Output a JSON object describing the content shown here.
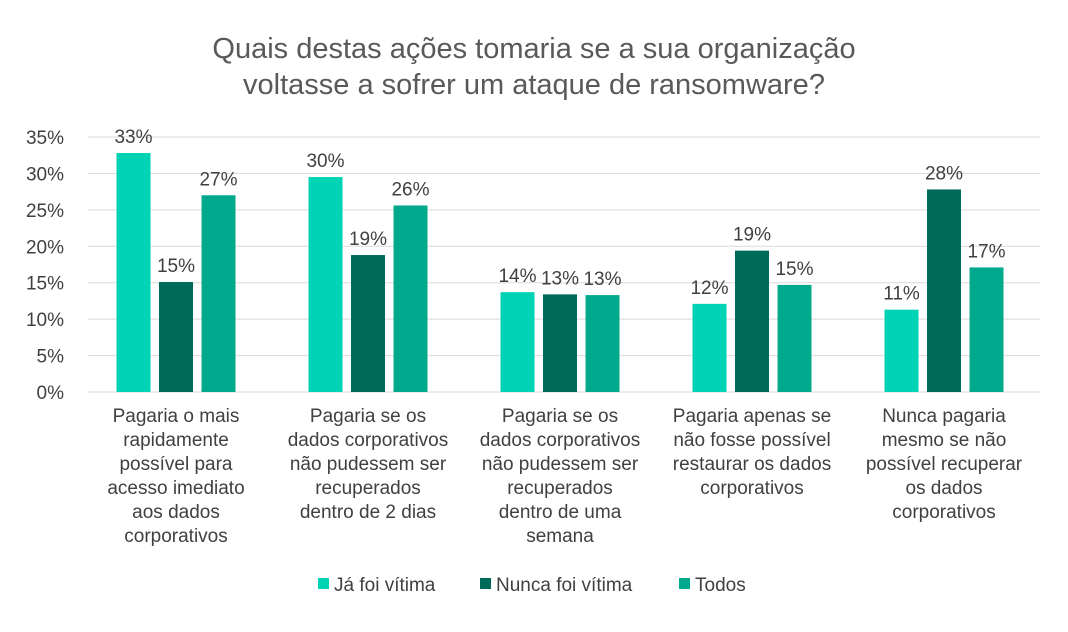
{
  "chart_data": {
    "type": "bar",
    "title": [
      "Quais destas ações tomaria se a sua organização",
      "voltasse a sofrer um ataque de ransomware?"
    ],
    "categories": [
      [
        "Pagaria o mais",
        "rapidamente",
        "possível para",
        "acesso imediato",
        "aos dados",
        "corporativos"
      ],
      [
        "Pagaria se os",
        "dados corporativos",
        "não pudessem ser",
        "recuperados",
        "dentro de 2 dias"
      ],
      [
        "Pagaria se os",
        "dados corporativos",
        "não pudessem ser",
        "recuperados",
        "dentro de uma",
        "semana"
      ],
      [
        "Pagaria apenas se",
        "não fosse possível",
        "restaurar os dados",
        "corporativos"
      ],
      [
        "Nunca pagaria",
        "mesmo se não",
        "possível recuperar",
        "os dados",
        "corporativos"
      ]
    ],
    "series": [
      {
        "name": "Já foi vítima",
        "color": "#00d2b4",
        "values": [
          33,
          30,
          14,
          12,
          11
        ],
        "labels": [
          "33%",
          "30%",
          "14%",
          "12%",
          "11%"
        ],
        "bar_values": [
          32.8,
          29.5,
          13.7,
          12.1,
          11.3
        ]
      },
      {
        "name": "Nunca foi vítima",
        "color": "#006a58",
        "values": [
          15,
          19,
          13,
          19,
          28
        ],
        "labels": [
          "15%",
          "19%",
          "13%",
          "19%",
          "28%"
        ],
        "bar_values": [
          15.1,
          18.8,
          13.4,
          19.4,
          27.8
        ]
      },
      {
        "name": "Todos",
        "color": "#00a88e",
        "values": [
          27,
          26,
          13,
          15,
          17
        ],
        "labels": [
          "27%",
          "26%",
          "13%",
          "15%",
          "17%"
        ],
        "bar_values": [
          27.0,
          25.6,
          13.3,
          14.7,
          17.1
        ]
      }
    ],
    "ylim": [
      0,
      35
    ],
    "yticks": [
      0,
      5,
      10,
      15,
      20,
      25,
      30,
      35
    ],
    "ytick_labels": [
      "0%",
      "5%",
      "10%",
      "15%",
      "20%",
      "25%",
      "30%",
      "35%"
    ],
    "grid": true,
    "legend_position": "bottom"
  }
}
